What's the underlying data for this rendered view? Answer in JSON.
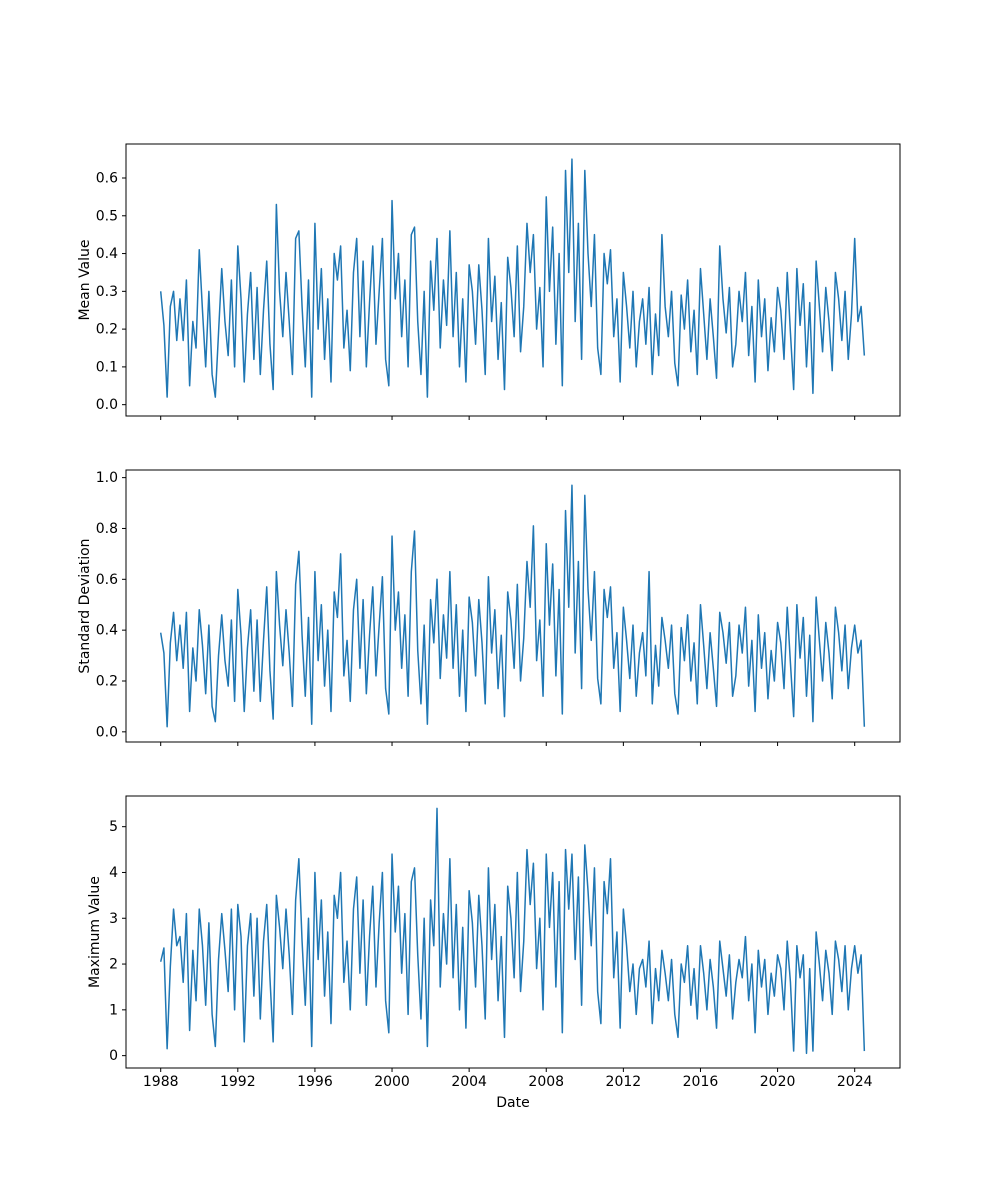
{
  "figure": {
    "background": "#ffffff",
    "line_color": "#1f77b4",
    "spine_color": "#000000"
  },
  "x_axis": {
    "label": "Date",
    "ticks": [
      1988,
      1992,
      1996,
      2000,
      2004,
      2008,
      2012,
      2016,
      2020,
      2024
    ],
    "tick_labels": [
      "1988",
      "1992",
      "1996",
      "2000",
      "2004",
      "2008",
      "2012",
      "2016",
      "2020",
      "2024"
    ]
  },
  "chart_data": [
    {
      "type": "line",
      "name": "mean-value",
      "ylabel": "Mean Value",
      "x_start": 1988.0,
      "x_step": 0.166667,
      "xlim": [
        1986.2,
        2026.35
      ],
      "ylim": [
        -0.03,
        0.69
      ],
      "yticks": [
        0.0,
        0.1,
        0.2,
        0.3,
        0.4,
        0.5,
        0.6
      ],
      "ytick_labels": [
        "0.0",
        "0.1",
        "0.2",
        "0.3",
        "0.4",
        "0.5",
        "0.6"
      ],
      "show_xtick_labels": false,
      "values": [
        0.3,
        0.21,
        0.02,
        0.26,
        0.3,
        0.17,
        0.28,
        0.17,
        0.33,
        0.05,
        0.22,
        0.15,
        0.41,
        0.25,
        0.1,
        0.3,
        0.08,
        0.02,
        0.19,
        0.36,
        0.22,
        0.13,
        0.33,
        0.1,
        0.42,
        0.28,
        0.06,
        0.24,
        0.35,
        0.12,
        0.31,
        0.08,
        0.25,
        0.38,
        0.16,
        0.04,
        0.53,
        0.3,
        0.18,
        0.35,
        0.22,
        0.08,
        0.44,
        0.46,
        0.26,
        0.1,
        0.33,
        0.02,
        0.48,
        0.2,
        0.36,
        0.12,
        0.28,
        0.06,
        0.4,
        0.33,
        0.42,
        0.15,
        0.25,
        0.09,
        0.35,
        0.44,
        0.18,
        0.38,
        0.1,
        0.27,
        0.42,
        0.16,
        0.3,
        0.44,
        0.12,
        0.05,
        0.54,
        0.28,
        0.4,
        0.18,
        0.33,
        0.1,
        0.45,
        0.47,
        0.22,
        0.08,
        0.3,
        0.02,
        0.38,
        0.25,
        0.44,
        0.15,
        0.33,
        0.21,
        0.46,
        0.18,
        0.35,
        0.1,
        0.28,
        0.06,
        0.37,
        0.3,
        0.16,
        0.37,
        0.25,
        0.08,
        0.44,
        0.22,
        0.34,
        0.12,
        0.27,
        0.04,
        0.39,
        0.31,
        0.18,
        0.42,
        0.14,
        0.26,
        0.48,
        0.35,
        0.45,
        0.2,
        0.31,
        0.1,
        0.55,
        0.3,
        0.47,
        0.16,
        0.4,
        0.05,
        0.62,
        0.35,
        0.65,
        0.22,
        0.48,
        0.12,
        0.62,
        0.4,
        0.26,
        0.45,
        0.15,
        0.08,
        0.4,
        0.32,
        0.41,
        0.18,
        0.28,
        0.06,
        0.35,
        0.26,
        0.15,
        0.3,
        0.1,
        0.22,
        0.28,
        0.16,
        0.31,
        0.08,
        0.24,
        0.13,
        0.45,
        0.26,
        0.18,
        0.3,
        0.11,
        0.05,
        0.29,
        0.2,
        0.33,
        0.14,
        0.25,
        0.08,
        0.36,
        0.24,
        0.12,
        0.28,
        0.18,
        0.07,
        0.42,
        0.28,
        0.19,
        0.31,
        0.1,
        0.16,
        0.3,
        0.22,
        0.35,
        0.13,
        0.26,
        0.06,
        0.33,
        0.18,
        0.28,
        0.09,
        0.23,
        0.14,
        0.31,
        0.25,
        0.12,
        0.35,
        0.19,
        0.04,
        0.36,
        0.21,
        0.32,
        0.1,
        0.27,
        0.03,
        0.38,
        0.26,
        0.14,
        0.31,
        0.22,
        0.09,
        0.35,
        0.28,
        0.17,
        0.3,
        0.12,
        0.24,
        0.44,
        0.22,
        0.26,
        0.13
      ]
    },
    {
      "type": "line",
      "name": "standard-deviation",
      "ylabel": "Standard Deviation",
      "x_start": 1988.0,
      "x_step": 0.166667,
      "xlim": [
        1986.2,
        2026.35
      ],
      "ylim": [
        -0.04,
        1.03
      ],
      "yticks": [
        0.0,
        0.2,
        0.4,
        0.6,
        0.8,
        1.0
      ],
      "ytick_labels": [
        "0.0",
        "0.2",
        "0.4",
        "0.6",
        "0.8",
        "1.0"
      ],
      "show_xtick_labels": false,
      "values": [
        0.39,
        0.31,
        0.02,
        0.35,
        0.47,
        0.28,
        0.42,
        0.25,
        0.47,
        0.08,
        0.33,
        0.2,
        0.48,
        0.34,
        0.15,
        0.42,
        0.1,
        0.04,
        0.3,
        0.46,
        0.28,
        0.18,
        0.44,
        0.12,
        0.56,
        0.38,
        0.08,
        0.33,
        0.48,
        0.16,
        0.44,
        0.12,
        0.36,
        0.57,
        0.24,
        0.05,
        0.63,
        0.42,
        0.26,
        0.48,
        0.31,
        0.1,
        0.58,
        0.71,
        0.38,
        0.14,
        0.45,
        0.03,
        0.63,
        0.28,
        0.5,
        0.18,
        0.4,
        0.08,
        0.55,
        0.45,
        0.7,
        0.22,
        0.36,
        0.12,
        0.48,
        0.6,
        0.25,
        0.52,
        0.15,
        0.38,
        0.57,
        0.22,
        0.42,
        0.61,
        0.17,
        0.07,
        0.77,
        0.4,
        0.55,
        0.25,
        0.46,
        0.14,
        0.63,
        0.79,
        0.32,
        0.11,
        0.42,
        0.03,
        0.52,
        0.35,
        0.6,
        0.21,
        0.46,
        0.29,
        0.63,
        0.25,
        0.5,
        0.14,
        0.4,
        0.08,
        0.53,
        0.43,
        0.22,
        0.52,
        0.35,
        0.11,
        0.61,
        0.31,
        0.48,
        0.17,
        0.38,
        0.06,
        0.55,
        0.44,
        0.25,
        0.58,
        0.2,
        0.37,
        0.67,
        0.49,
        0.81,
        0.28,
        0.44,
        0.14,
        0.74,
        0.42,
        0.66,
        0.22,
        0.56,
        0.07,
        0.87,
        0.49,
        0.97,
        0.31,
        0.67,
        0.17,
        0.93,
        0.56,
        0.36,
        0.63,
        0.21,
        0.11,
        0.56,
        0.45,
        0.57,
        0.25,
        0.39,
        0.08,
        0.49,
        0.36,
        0.21,
        0.42,
        0.14,
        0.31,
        0.39,
        0.22,
        0.63,
        0.11,
        0.34,
        0.18,
        0.45,
        0.36,
        0.25,
        0.42,
        0.15,
        0.07,
        0.41,
        0.28,
        0.46,
        0.2,
        0.35,
        0.11,
        0.5,
        0.34,
        0.17,
        0.39,
        0.25,
        0.1,
        0.47,
        0.39,
        0.27,
        0.43,
        0.14,
        0.22,
        0.42,
        0.31,
        0.49,
        0.18,
        0.36,
        0.08,
        0.46,
        0.25,
        0.39,
        0.13,
        0.32,
        0.2,
        0.43,
        0.35,
        0.17,
        0.49,
        0.27,
        0.06,
        0.5,
        0.29,
        0.45,
        0.14,
        0.38,
        0.04,
        0.53,
        0.36,
        0.2,
        0.43,
        0.31,
        0.13,
        0.49,
        0.39,
        0.24,
        0.42,
        0.17,
        0.33,
        0.42,
        0.31,
        0.36,
        0.02
      ]
    },
    {
      "type": "line",
      "name": "maximum-value",
      "ylabel": "Maximum Value",
      "xlabel": "Date",
      "x_start": 1988.0,
      "x_step": 0.166667,
      "xlim": [
        1986.2,
        2026.35
      ],
      "ylim": [
        -0.27,
        5.67
      ],
      "yticks": [
        0,
        1,
        2,
        3,
        4,
        5
      ],
      "ytick_labels": [
        "0",
        "1",
        "2",
        "3",
        "4",
        "5"
      ],
      "show_xtick_labels": true,
      "values": [
        2.05,
        2.35,
        0.15,
        1.95,
        3.2,
        2.4,
        2.6,
        1.6,
        3.1,
        0.55,
        2.3,
        1.2,
        3.2,
        2.4,
        1.1,
        2.9,
        0.9,
        0.2,
        2.1,
        3.1,
        2.3,
        1.4,
        3.2,
        1.0,
        3.3,
        2.6,
        0.3,
        2.4,
        3.1,
        1.3,
        3.0,
        0.8,
        2.5,
        3.3,
        1.7,
        0.3,
        3.5,
        2.8,
        1.9,
        3.2,
        2.2,
        0.9,
        3.4,
        4.3,
        2.5,
        1.1,
        3.0,
        0.2,
        4.0,
        2.1,
        3.4,
        1.3,
        2.7,
        0.7,
        3.5,
        3.0,
        4.0,
        1.6,
        2.5,
        1.0,
        3.2,
        3.9,
        1.8,
        3.4,
        1.1,
        2.6,
        3.7,
        1.5,
        2.9,
        4.0,
        1.2,
        0.5,
        4.4,
        2.7,
        3.7,
        1.8,
        3.1,
        0.9,
        3.8,
        4.1,
        2.2,
        0.8,
        3.0,
        0.2,
        3.4,
        2.4,
        5.4,
        1.5,
        3.1,
        2.0,
        4.3,
        1.7,
        3.3,
        1.0,
        2.8,
        0.6,
        3.6,
        2.9,
        1.5,
        3.5,
        2.4,
        0.8,
        4.1,
        2.1,
        3.3,
        1.2,
        2.6,
        0.4,
        3.7,
        3.0,
        1.7,
        4.0,
        1.4,
        2.5,
        4.5,
        3.3,
        4.2,
        1.9,
        3.0,
        1.0,
        4.4,
        2.8,
        4.0,
        1.5,
        3.8,
        0.5,
        4.5,
        3.2,
        4.4,
        2.1,
        3.9,
        1.1,
        4.6,
        3.6,
        2.4,
        4.1,
        1.4,
        0.7,
        3.8,
        3.1,
        4.3,
        1.7,
        2.7,
        0.6,
        3.2,
        2.4,
        1.4,
        2.0,
        0.9,
        1.9,
        2.1,
        1.5,
        2.5,
        0.7,
        1.9,
        1.2,
        2.3,
        1.8,
        1.2,
        2.1,
        0.9,
        0.4,
        2.0,
        1.6,
        2.4,
        1.1,
        1.9,
        0.8,
        2.4,
        1.8,
        1.0,
        2.1,
        1.5,
        0.6,
        2.5,
        1.9,
        1.3,
        2.2,
        0.8,
        1.6,
        2.1,
        1.7,
        2.6,
        1.2,
        2.0,
        0.5,
        2.3,
        1.5,
        2.1,
        0.9,
        1.8,
        1.3,
        2.2,
        1.9,
        1.0,
        2.5,
        1.6,
        0.1,
        2.4,
        1.7,
        2.2,
        0.05,
        1.9,
        0.1,
        2.7,
        2.0,
        1.2,
        2.3,
        1.8,
        0.9,
        2.5,
        2.1,
        1.4,
        2.4,
        1.0,
        1.9,
        2.4,
        1.8,
        2.2,
        0.1
      ]
    }
  ]
}
